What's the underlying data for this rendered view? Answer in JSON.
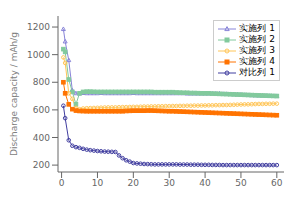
{
  "chart_data": {
    "type": "line",
    "ylabel": "Discharge capacity / mAh/g",
    "xlim": [
      -1,
      62
    ],
    "xticks": [
      0,
      10,
      20,
      30,
      40,
      50,
      60
    ],
    "ylim": [
      150,
      1280
    ],
    "yticks": [
      200,
      400,
      600,
      800,
      1000,
      1200
    ],
    "grid": false,
    "legend": "upper right",
    "x": [
      0.5,
      1,
      2,
      3,
      4,
      5,
      6,
      7,
      8,
      9,
      10,
      11,
      12,
      13,
      14,
      15,
      16,
      17,
      18,
      19,
      20,
      21,
      22,
      23,
      24,
      25,
      26,
      27,
      28,
      29,
      30,
      31,
      32,
      33,
      34,
      35,
      36,
      37,
      38,
      39,
      40,
      41,
      42,
      43,
      44,
      45,
      46,
      47,
      48,
      49,
      50,
      51,
      52,
      53,
      54,
      55,
      56,
      57,
      58,
      59,
      60
    ],
    "series": [
      {
        "name": "实施列 1",
        "marker": "triangle",
        "values": [
          1185,
          1095,
          960,
          740,
          720,
          718,
          722,
          720,
          720,
          720,
          720,
          722,
          720,
          720,
          720,
          720,
          720,
          720,
          720,
          720,
          722,
          720,
          720,
          720,
          720,
          720,
          720,
          720,
          720,
          720,
          720,
          720,
          720,
          720,
          720,
          718,
          718,
          718,
          718,
          718,
          718,
          718,
          718,
          718,
          718,
          715,
          715,
          714,
          713,
          712,
          710,
          708,
          707,
          706,
          705,
          704,
          703,
          702,
          701,
          700,
          700
        ]
      },
      {
        "name": "实施列 2",
        "marker": "square",
        "values": [
          1040,
          1020,
          820,
          730,
          640,
          720,
          730,
          732,
          732,
          731,
          730,
          730,
          730,
          730,
          730,
          730,
          730,
          730,
          730,
          730,
          730,
          730,
          730,
          730,
          730,
          730,
          728,
          728,
          728,
          728,
          728,
          728,
          726,
          725,
          724,
          724,
          722,
          722,
          721,
          720,
          720,
          720,
          718,
          717,
          716,
          715,
          714,
          713,
          712,
          711,
          710,
          709,
          708,
          707,
          706,
          705,
          704,
          703,
          702,
          701,
          700
        ]
      },
      {
        "name": "实施列 3",
        "marker": "circle",
        "values": [
          980,
          940,
          720,
          680,
          615,
          605,
          610,
          612,
          613,
          614,
          615,
          616,
          617,
          618,
          618,
          618,
          619,
          620,
          620,
          621,
          622,
          622,
          623,
          624,
          624,
          625,
          625,
          626,
          626,
          627,
          627,
          628,
          628,
          629,
          629,
          630,
          630,
          631,
          631,
          632,
          632,
          633,
          633,
          634,
          634,
          635,
          635,
          636,
          637,
          638,
          639,
          640,
          640,
          641,
          642,
          643,
          643,
          644,
          644,
          645,
          645
        ]
      },
      {
        "name": "实施列 4",
        "marker": "square",
        "values": [
          800,
          720,
          640,
          605,
          595,
          592,
          591,
          590,
          590,
          590,
          590,
          590,
          590,
          590,
          590,
          590,
          590,
          590,
          592,
          593,
          594,
          594,
          594,
          594,
          595,
          595,
          594,
          593,
          592,
          591,
          590,
          590,
          589,
          588,
          587,
          586,
          585,
          584,
          583,
          582,
          581,
          580,
          579,
          578,
          577,
          576,
          575,
          574,
          573,
          572,
          571,
          570,
          569,
          568,
          567,
          566,
          565,
          564,
          563,
          562,
          561
        ]
      },
      {
        "name": "对比列 1",
        "marker": "circle",
        "values": [
          630,
          540,
          380,
          340,
          330,
          325,
          318,
          312,
          308,
          305,
          302,
          300,
          298,
          297,
          296,
          295,
          270,
          250,
          235,
          225,
          215,
          212,
          210,
          208,
          207,
          206,
          205,
          205,
          205,
          205,
          205,
          205,
          205,
          204,
          204,
          204,
          203,
          203,
          203,
          202,
          202,
          202,
          201,
          201,
          201,
          200,
          200,
          200,
          200,
          200,
          200,
          200,
          200,
          200,
          200,
          200,
          200,
          200,
          200,
          200,
          200
        ]
      }
    ]
  }
}
